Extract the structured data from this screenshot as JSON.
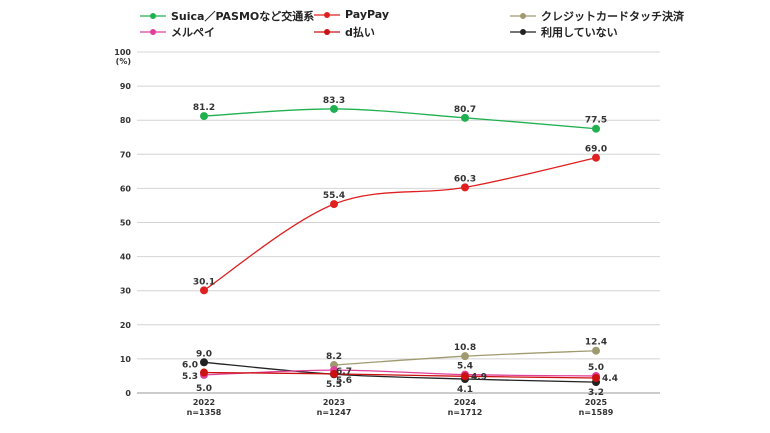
{
  "legend": [
    {
      "name": "Suica／PASMOなど交通系",
      "color": "#20b050"
    },
    {
      "name": "PayPay",
      "color": "#e02020"
    },
    {
      "name": "クレジットカードタッチ決済",
      "color": "#a09a70"
    },
    {
      "name": "メルペイ",
      "color": "#e0409a"
    },
    {
      "name": "d払い",
      "color": "#cc1111"
    },
    {
      "name": "利用していない",
      "color": "#222222"
    }
  ],
  "chart_data": {
    "type": "line",
    "y_unit": "(%)",
    "ylim": [
      0,
      100
    ],
    "y_ticks": [
      "0",
      "10",
      "20",
      "30",
      "40",
      "50",
      "60",
      "70",
      "80",
      "90",
      "100"
    ],
    "grid": true,
    "legend_position": "top",
    "categories": [
      {
        "year": "2022",
        "n": "n=1358"
      },
      {
        "year": "2023",
        "n": "n=1247"
      },
      {
        "year": "2024",
        "n": "n=1712"
      },
      {
        "year": "2025",
        "n": "n=1589"
      }
    ],
    "series": [
      {
        "name": "Suica／PASMOなど交通系",
        "color": "#20b050",
        "values": [
          81.2,
          83.3,
          80.7,
          77.5
        ],
        "labels": [
          "81.2",
          "83.3",
          "80.7",
          "77.5"
        ]
      },
      {
        "name": "PayPay",
        "color": "#e02020",
        "values": [
          30.1,
          55.4,
          60.3,
          69.0
        ],
        "labels": [
          "30.1",
          "55.4",
          "60.3",
          "69.0"
        ]
      },
      {
        "name": "クレジットカードタッチ決済",
        "color": "#a09a70",
        "values": [
          null,
          8.2,
          10.8,
          12.4
        ],
        "labels": [
          "",
          "8.2",
          "10.8",
          "12.4"
        ]
      },
      {
        "name": "メルペイ",
        "color": "#e0409a",
        "values": [
          5.3,
          6.7,
          5.4,
          5.0
        ],
        "labels": [
          "5.3",
          "6.7",
          "5.4",
          "5.0"
        ]
      },
      {
        "name": "d払い",
        "color": "#cc1111",
        "values": [
          6.0,
          5.6,
          4.9,
          4.4
        ],
        "labels": [
          "6.0",
          "5.6",
          "4.9",
          "4.4"
        ]
      },
      {
        "name": "利用していない",
        "color": "#222222",
        "values": [
          9.0,
          5.5,
          4.1,
          3.2
        ],
        "labels": [
          "9.0",
          "5.5",
          "4.1",
          "3.2"
        ]
      }
    ],
    "extra_labels": [
      {
        "series": "クレジットカードタッチ決済",
        "index": 0,
        "text": "5.0"
      }
    ]
  }
}
